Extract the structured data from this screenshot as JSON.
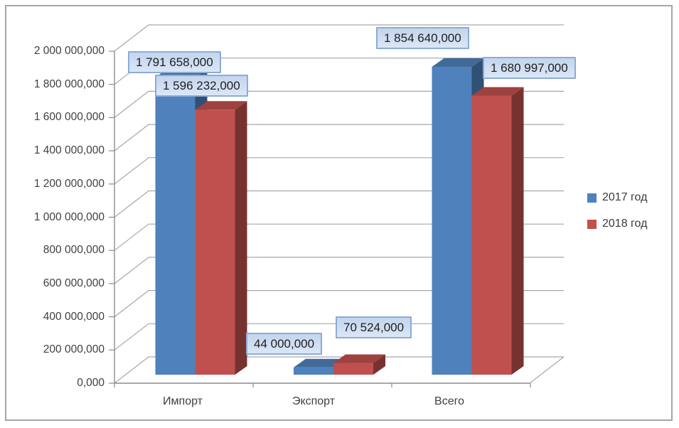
{
  "chart_data": {
    "type": "bar",
    "projection": "3d",
    "title": "",
    "categories": [
      "Импорт",
      "Экспорт",
      "Всего"
    ],
    "series": [
      {
        "name": "2017 год",
        "color": "#4f81bd",
        "values": [
          1791658,
          44000,
          1854640
        ],
        "data_labels": [
          "1 791 658,000",
          "44 000,000",
          "1 854 640,000"
        ]
      },
      {
        "name": "2018 год",
        "color": "#c0504d",
        "values": [
          1596232,
          70524,
          1680997
        ],
        "data_labels": [
          "1 596 232,000",
          "70 524,000",
          "1 680 997,000"
        ]
      }
    ],
    "xlabel": "",
    "ylabel": "",
    "ylim": [
      0,
      2000000
    ],
    "ytick_step": 200000,
    "ytick_labels": [
      "0,000",
      "200 000,000",
      "400 000,000",
      "600 000,000",
      "800 000,000",
      "1 000 000,000",
      "1 200 000,000",
      "1 400 000,000",
      "1 600 000,000",
      "1 800 000,000",
      "2 000 000,000"
    ],
    "grid": true,
    "legend_position": "right",
    "style": {
      "grid_color": "#a6a6a6",
      "axis_color": "#8c8c8c",
      "frame_border_color": "#a6a6a6",
      "axis_text_color": "#3f3f3f",
      "data_label_fill_top": "#c3d5ed",
      "data_label_fill_bottom": "#dbe7f6",
      "data_label_border": "#8cacd3",
      "data_label_text": "#1f1f1f",
      "background": "#ffffff"
    }
  }
}
